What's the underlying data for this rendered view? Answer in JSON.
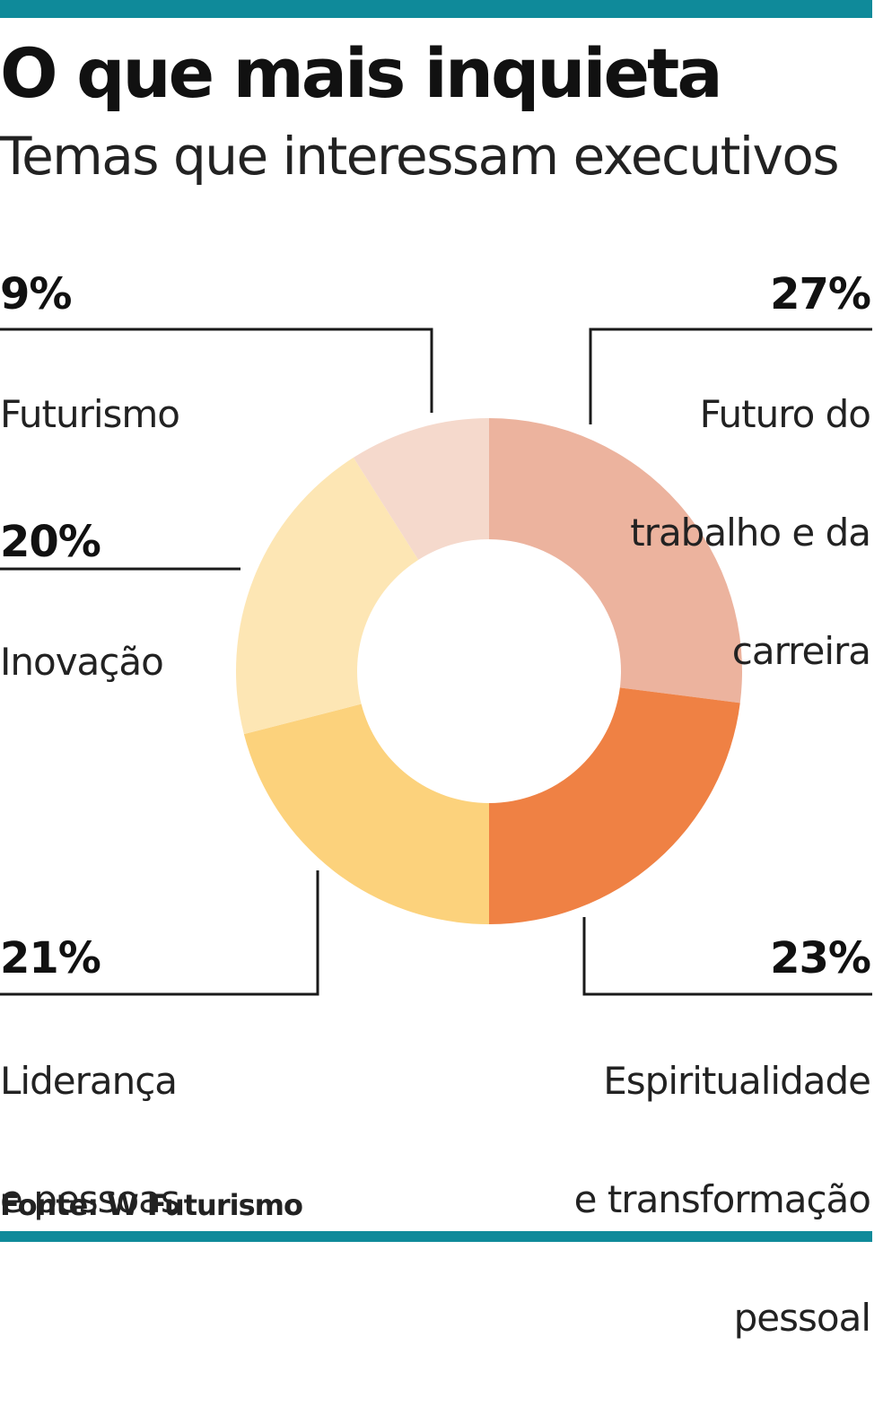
{
  "header": {
    "title": "O que mais inquieta",
    "subtitle": "Temas que interessam executivos"
  },
  "footer": {
    "source": "Fonte: W Futurismo"
  },
  "colors": {
    "rule": "#0f8a9a",
    "slices": [
      "#ecb39e",
      "#ef8144",
      "#fcd27c",
      "#fde6b4",
      "#f5d9cc"
    ]
  },
  "chart_data": {
    "type": "pie",
    "donut": true,
    "categories": [
      "Futuro do trabalho e da carreira",
      "Espiritualidade e transformação pessoal",
      "Liderança e pessoas",
      "Inovação",
      "Futurismo"
    ],
    "values": [
      27,
      23,
      21,
      20,
      9
    ],
    "value_labels": [
      "27%",
      "23%",
      "21%",
      "20%",
      "9%"
    ],
    "label_lines": [
      [
        "Futuro do",
        "trabalho e da",
        "carreira"
      ],
      [
        "Espiritualidade",
        "e transformação",
        "pessoal"
      ],
      [
        "Liderança",
        "e pessoas"
      ],
      [
        "Inovação"
      ],
      [
        "Futurismo"
      ]
    ],
    "title": "O que mais inquieta",
    "subtitle": "Temas que interessam executivos",
    "source": "Fonte: W Futurismo"
  }
}
